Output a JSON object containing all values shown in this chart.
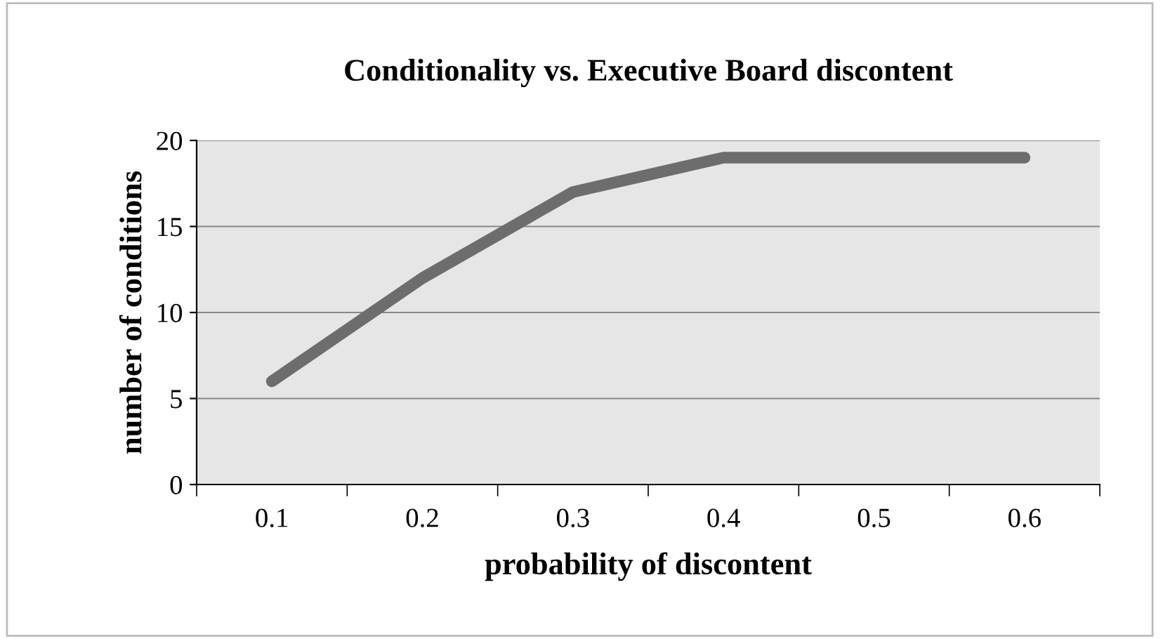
{
  "chart_data": {
    "type": "line",
    "title": "Conditionality vs. Executive Board discontent",
    "xlabel": "probability of discontent",
    "ylabel": "number of conditions",
    "categories": [
      "0.1",
      "0.2",
      "0.3",
      "0.4",
      "0.5",
      "0.6"
    ],
    "series": [
      {
        "color": "#6d6d6d",
        "values": [
          6,
          12,
          17,
          19,
          19,
          19
        ]
      }
    ],
    "ylim": [
      0,
      20
    ],
    "yticks": [
      0,
      5,
      10,
      15,
      20
    ],
    "grid": "y",
    "legend": false,
    "marker": "none",
    "line_style": "solid"
  }
}
